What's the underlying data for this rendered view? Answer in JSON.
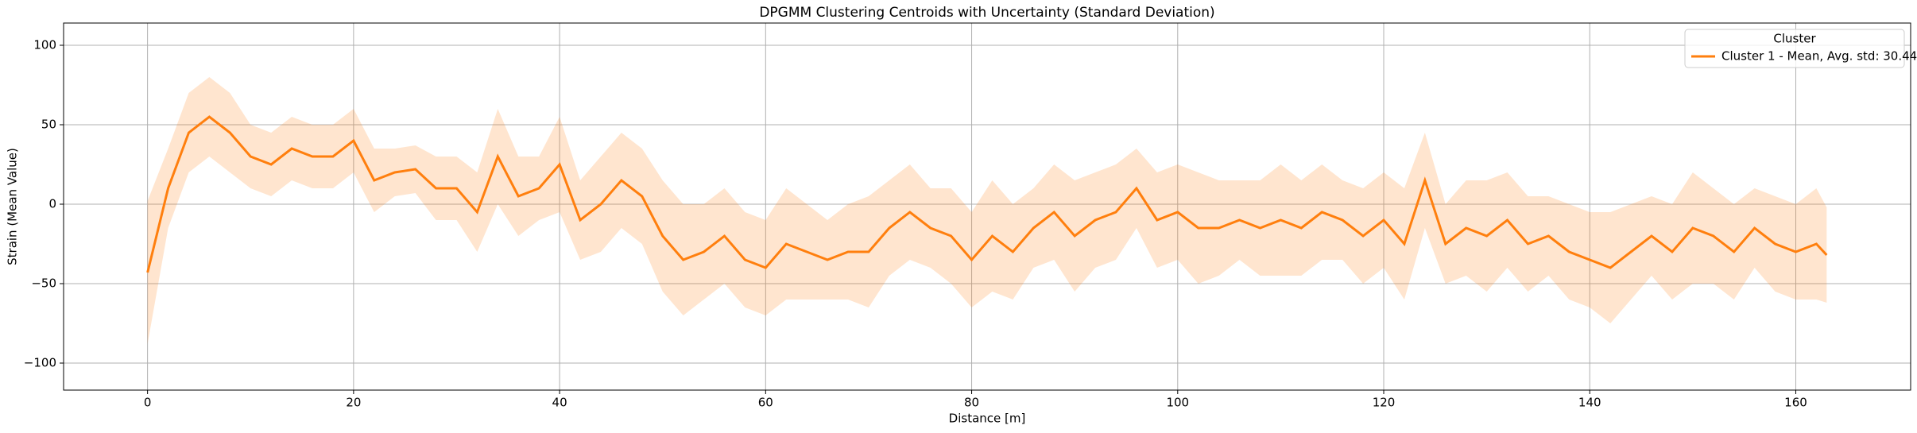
{
  "chart_data": {
    "type": "line",
    "title": "DPGMM Clustering Centroids with Uncertainty (Standard Deviation)",
    "x_label": "Distance [m]",
    "y_label": "Strain (Mean Value)",
    "x": [
      0,
      2,
      4,
      6,
      8,
      10,
      12,
      14,
      16,
      18,
      20,
      22,
      24,
      26,
      28,
      30,
      32,
      34,
      36,
      38,
      40,
      42,
      44,
      46,
      48,
      50,
      52,
      54,
      56,
      58,
      60,
      62,
      64,
      66,
      68,
      70,
      72,
      74,
      76,
      78,
      80,
      82,
      84,
      86,
      88,
      90,
      92,
      94,
      96,
      98,
      100,
      102,
      104,
      106,
      108,
      110,
      112,
      114,
      116,
      118,
      120,
      122,
      124,
      126,
      128,
      130,
      132,
      134,
      136,
      138,
      140,
      142,
      144,
      146,
      148,
      150,
      152,
      154,
      156,
      158,
      160,
      162,
      163
    ],
    "series": [
      {
        "name": "Cluster 1 - Mean, Avg. std: 30.44",
        "color": "#ff7f0e",
        "values": [
          -43,
          10,
          45,
          55,
          45,
          30,
          25,
          35,
          30,
          30,
          40,
          15,
          20,
          22,
          10,
          10,
          -5,
          30,
          5,
          10,
          25,
          -10,
          0,
          15,
          5,
          -20,
          -35,
          -30,
          -20,
          -35,
          -40,
          -25,
          -30,
          -35,
          -30,
          -30,
          -15,
          -5,
          -15,
          -20,
          -35,
          -20,
          -30,
          -15,
          -5,
          -20,
          -10,
          -5,
          10,
          -10,
          -5,
          -15,
          -15,
          -10,
          -15,
          -10,
          -15,
          -5,
          -10,
          -20,
          -10,
          -25,
          15,
          -25,
          -15,
          -20,
          -10,
          -25,
          -20,
          -30,
          -35,
          -40,
          -30,
          -20,
          -30,
          -15,
          -20,
          -30,
          -15,
          -25,
          -30,
          -25,
          -32
        ],
        "upper": [
          2,
          35,
          70,
          80,
          70,
          50,
          45,
          55,
          50,
          50,
          60,
          35,
          35,
          37,
          30,
          30,
          20,
          60,
          30,
          30,
          55,
          15,
          30,
          45,
          35,
          15,
          0,
          0,
          10,
          -5,
          -10,
          10,
          0,
          -10,
          0,
          5,
          15,
          25,
          10,
          10,
          -5,
          15,
          0,
          10,
          25,
          15,
          20,
          25,
          35,
          20,
          25,
          20,
          15,
          15,
          15,
          25,
          15,
          25,
          15,
          10,
          20,
          10,
          45,
          0,
          15,
          15,
          20,
          5,
          5,
          0,
          -5,
          -5,
          0,
          5,
          0,
          20,
          10,
          0,
          10,
          5,
          0,
          10,
          -2
        ],
        "lower": [
          -88,
          -15,
          20,
          30,
          20,
          10,
          5,
          15,
          10,
          10,
          20,
          -5,
          5,
          7,
          -10,
          -10,
          -30,
          0,
          -20,
          -10,
          -5,
          -35,
          -30,
          -15,
          -25,
          -55,
          -70,
          -60,
          -50,
          -65,
          -70,
          -60,
          -60,
          -60,
          -60,
          -65,
          -45,
          -35,
          -40,
          -50,
          -65,
          -55,
          -60,
          -40,
          -35,
          -55,
          -40,
          -35,
          -15,
          -40,
          -35,
          -50,
          -45,
          -35,
          -45,
          -45,
          -45,
          -35,
          -35,
          -50,
          -40,
          -60,
          -15,
          -50,
          -45,
          -55,
          -40,
          -55,
          -45,
          -60,
          -65,
          -75,
          -60,
          -45,
          -60,
          -50,
          -50,
          -60,
          -40,
          -55,
          -60,
          -60,
          -62
        ]
      }
    ],
    "xlim": [
      -8.15,
      171.15
    ],
    "ylim": [
      -117,
      114
    ],
    "xticks": [
      0,
      20,
      40,
      60,
      80,
      100,
      120,
      140,
      160
    ],
    "yticks": [
      {
        "value": -100,
        "label": "−100"
      },
      {
        "value": -50,
        "label": "−50"
      },
      0,
      50,
      100
    ],
    "grid": true,
    "legend_title": "Cluster",
    "legend_position": "upper right",
    "band_opacity": 0.2
  }
}
